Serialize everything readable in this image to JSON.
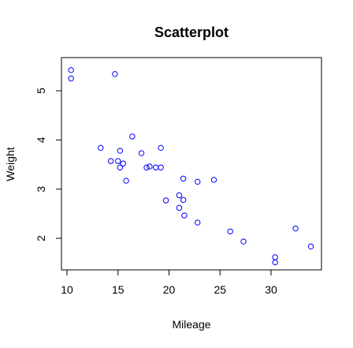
{
  "chart_data": {
    "type": "scatter",
    "title": "Scatterplot",
    "xlabel": "Mileage",
    "ylabel": "Weight",
    "xlim": [
      10,
      34
    ],
    "ylim": [
      1.5,
      5.5
    ],
    "xticks": [
      10,
      15,
      20,
      25,
      30
    ],
    "yticks": [
      2,
      3,
      4,
      5
    ],
    "grid": false,
    "marker_color": "#0000ff",
    "points": [
      {
        "x": 10.4,
        "y": 5.42
      },
      {
        "x": 10.4,
        "y": 5.25
      },
      {
        "x": 14.7,
        "y": 5.34
      },
      {
        "x": 13.3,
        "y": 3.84
      },
      {
        "x": 14.3,
        "y": 3.57
      },
      {
        "x": 15.0,
        "y": 3.57
      },
      {
        "x": 15.2,
        "y": 3.78
      },
      {
        "x": 15.2,
        "y": 3.44
      },
      {
        "x": 15.5,
        "y": 3.52
      },
      {
        "x": 15.8,
        "y": 3.17
      },
      {
        "x": 16.4,
        "y": 4.07
      },
      {
        "x": 17.3,
        "y": 3.73
      },
      {
        "x": 17.8,
        "y": 3.44
      },
      {
        "x": 18.1,
        "y": 3.46
      },
      {
        "x": 18.7,
        "y": 3.44
      },
      {
        "x": 19.2,
        "y": 3.84
      },
      {
        "x": 19.2,
        "y": 3.44
      },
      {
        "x": 19.7,
        "y": 2.77
      },
      {
        "x": 21.0,
        "y": 2.62
      },
      {
        "x": 21.0,
        "y": 2.875
      },
      {
        "x": 21.4,
        "y": 3.215
      },
      {
        "x": 21.4,
        "y": 2.78
      },
      {
        "x": 21.5,
        "y": 2.465
      },
      {
        "x": 22.8,
        "y": 3.15
      },
      {
        "x": 22.8,
        "y": 2.32
      },
      {
        "x": 24.4,
        "y": 3.19
      },
      {
        "x": 26.0,
        "y": 2.14
      },
      {
        "x": 27.3,
        "y": 1.935
      },
      {
        "x": 30.4,
        "y": 1.615
      },
      {
        "x": 30.4,
        "y": 1.513
      },
      {
        "x": 32.4,
        "y": 2.2
      },
      {
        "x": 33.9,
        "y": 1.835
      }
    ]
  }
}
